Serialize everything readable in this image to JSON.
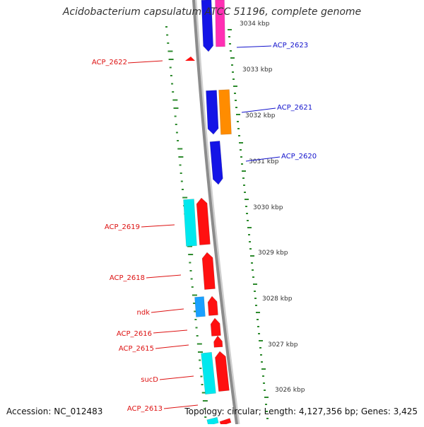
{
  "title": "Acidobacterium capsulatum ATCC 51196, complete genome",
  "footer": {
    "accession": "Accession: NC_012483",
    "info": "Topology: circular; Length: 4,127,356 bp; Genes: 3,425"
  },
  "colors": {
    "backbone": "#8c8c8c",
    "gc_ticks": "#2e8b2e",
    "label_red": "#dd1111",
    "label_blue": "#1111cc",
    "blue": "#1414e6",
    "magenta": "#ff2fb4",
    "orange": "#ff8c00",
    "red": "#ff1010",
    "cyan": "#00e8ee",
    "sky": "#1aa0ff"
  },
  "scale_labels": [
    "3034 kbp",
    "3033 kbp",
    "3032 kbp",
    "3031 kbp",
    "3030 kbp",
    "3029 kbp",
    "3028 kbp",
    "3027 kbp",
    "3026 kbp"
  ],
  "gene_labels": [
    {
      "text": "ACP_2622",
      "color": "label_red"
    },
    {
      "text": "ACP_2623",
      "color": "label_blue"
    },
    {
      "text": "ACP_2621",
      "color": "label_blue"
    },
    {
      "text": "ACP_2620",
      "color": "label_blue"
    },
    {
      "text": "ACP_2619",
      "color": "label_red"
    },
    {
      "text": "ACP_2618",
      "color": "label_red"
    },
    {
      "text": "ndk",
      "color": "label_red"
    },
    {
      "text": "ACP_2616",
      "color": "label_red"
    },
    {
      "text": "ACP_2615",
      "color": "label_red"
    },
    {
      "text": "sucD",
      "color": "label_red"
    },
    {
      "text": "ACP_2613",
      "color": "label_red"
    }
  ]
}
